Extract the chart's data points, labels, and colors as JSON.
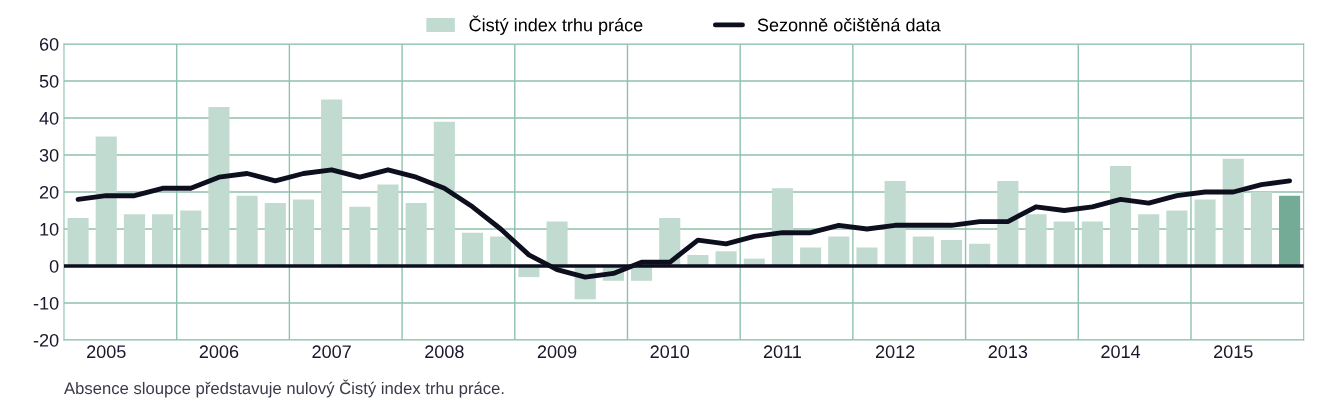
{
  "chart_data": {
    "type": "bar",
    "categories": [
      null,
      "2005",
      null,
      null,
      null,
      "2006",
      null,
      null,
      null,
      "2007",
      null,
      null,
      null,
      "2008",
      null,
      null,
      null,
      "2009",
      null,
      null,
      null,
      "2010",
      null,
      null,
      null,
      "2011",
      null,
      null,
      null,
      "2012",
      null,
      null,
      null,
      "2013",
      null,
      null,
      null,
      "2014",
      null,
      null,
      null,
      "2015",
      null,
      null
    ],
    "series": [
      {
        "name": "Čistý index trhu práce",
        "color": "#c2dbd1",
        "colors": [
          "#c2dbd1",
          "#c2dbd1",
          "#c2dbd1",
          "#c2dbd1",
          "#c2dbd1",
          "#c2dbd1",
          "#c2dbd1",
          "#c2dbd1",
          "#c2dbd1",
          "#c2dbd1",
          "#c2dbd1",
          "#c2dbd1",
          "#c2dbd1",
          "#c2dbd1",
          "#c2dbd1",
          "#c2dbd1",
          "#c2dbd1",
          "#c2dbd1",
          "#c2dbd1",
          "#c2dbd1",
          "#c2dbd1",
          "#c2dbd1",
          "#c2dbd1",
          "#c2dbd1",
          "#c2dbd1",
          "#c2dbd1",
          "#c2dbd1",
          "#c2dbd1",
          "#c2dbd1",
          "#c2dbd1",
          "#c2dbd1",
          "#c2dbd1",
          "#c2dbd1",
          "#c2dbd1",
          "#c2dbd1",
          "#c2dbd1",
          "#c2dbd1",
          "#c2dbd1",
          "#c2dbd1",
          "#c2dbd1",
          "#c2dbd1",
          "#c2dbd1",
          "#c2dbd1",
          "#74ab96"
        ],
        "values": [
          13,
          35,
          14,
          14,
          15,
          43,
          19,
          17,
          18,
          45,
          16,
          22,
          17,
          39,
          9,
          8,
          -3,
          12,
          -9,
          -4,
          -4,
          13,
          3,
          4,
          2,
          21,
          5,
          8,
          5,
          23,
          8,
          7,
          6,
          23,
          14,
          12,
          12,
          27,
          14,
          15,
          18,
          29,
          20,
          19
        ]
      },
      {
        "name": "Sezonně očištěná data",
        "type": "line",
        "color": "#0d0f1f",
        "values": [
          18,
          19,
          19,
          21,
          21,
          24,
          25,
          23,
          25,
          26,
          24,
          26,
          24,
          21,
          16,
          10,
          3,
          -1,
          -3,
          -2,
          1,
          1,
          7,
          6,
          8,
          9,
          9,
          11,
          10,
          11,
          11,
          11,
          12,
          12,
          16,
          15,
          16,
          18,
          17,
          19,
          20,
          20,
          22,
          23
        ]
      }
    ],
    "ylim": [
      -20,
      60
    ],
    "yticks": [
      -20,
      -10,
      0,
      10,
      20,
      30,
      40,
      50,
      60
    ],
    "ref_lines": [
      {
        "axis": "y",
        "value": 0,
        "color": "#0d0f1f"
      }
    ],
    "grid": true,
    "legend": "top",
    "marker": "none",
    "line_style": "solid",
    "annotations": [
      "Absence sloupce představuje nulový Čistý index trhu práce."
    ]
  }
}
